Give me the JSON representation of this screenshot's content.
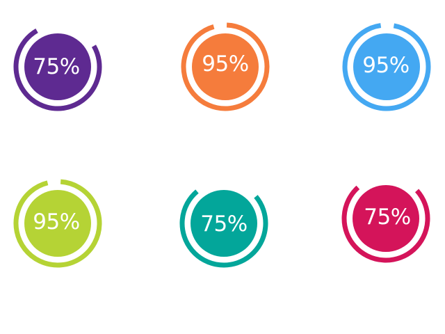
{
  "gauges": [
    {
      "value": "75%",
      "fraction": 0.75,
      "color": "#5e2a91",
      "gap_start_deg": -30
    },
    {
      "value": "95%",
      "fraction": 0.95,
      "color": "#f57c3c",
      "gap_start_deg": -16
    },
    {
      "value": "95%",
      "fraction": 0.95,
      "color": "#44a8f2",
      "gap_start_deg": -8
    },
    {
      "value": "95%",
      "fraction": 0.95,
      "color": "#b5d335",
      "gap_start_deg": -14
    },
    {
      "value": "75%",
      "fraction": 0.75,
      "color": "#03a69a",
      "gap_start_deg": -40
    },
    {
      "value": "75%",
      "fraction": 0.75,
      "color": "#d4145a",
      "gap_start_deg": -42
    }
  ]
}
